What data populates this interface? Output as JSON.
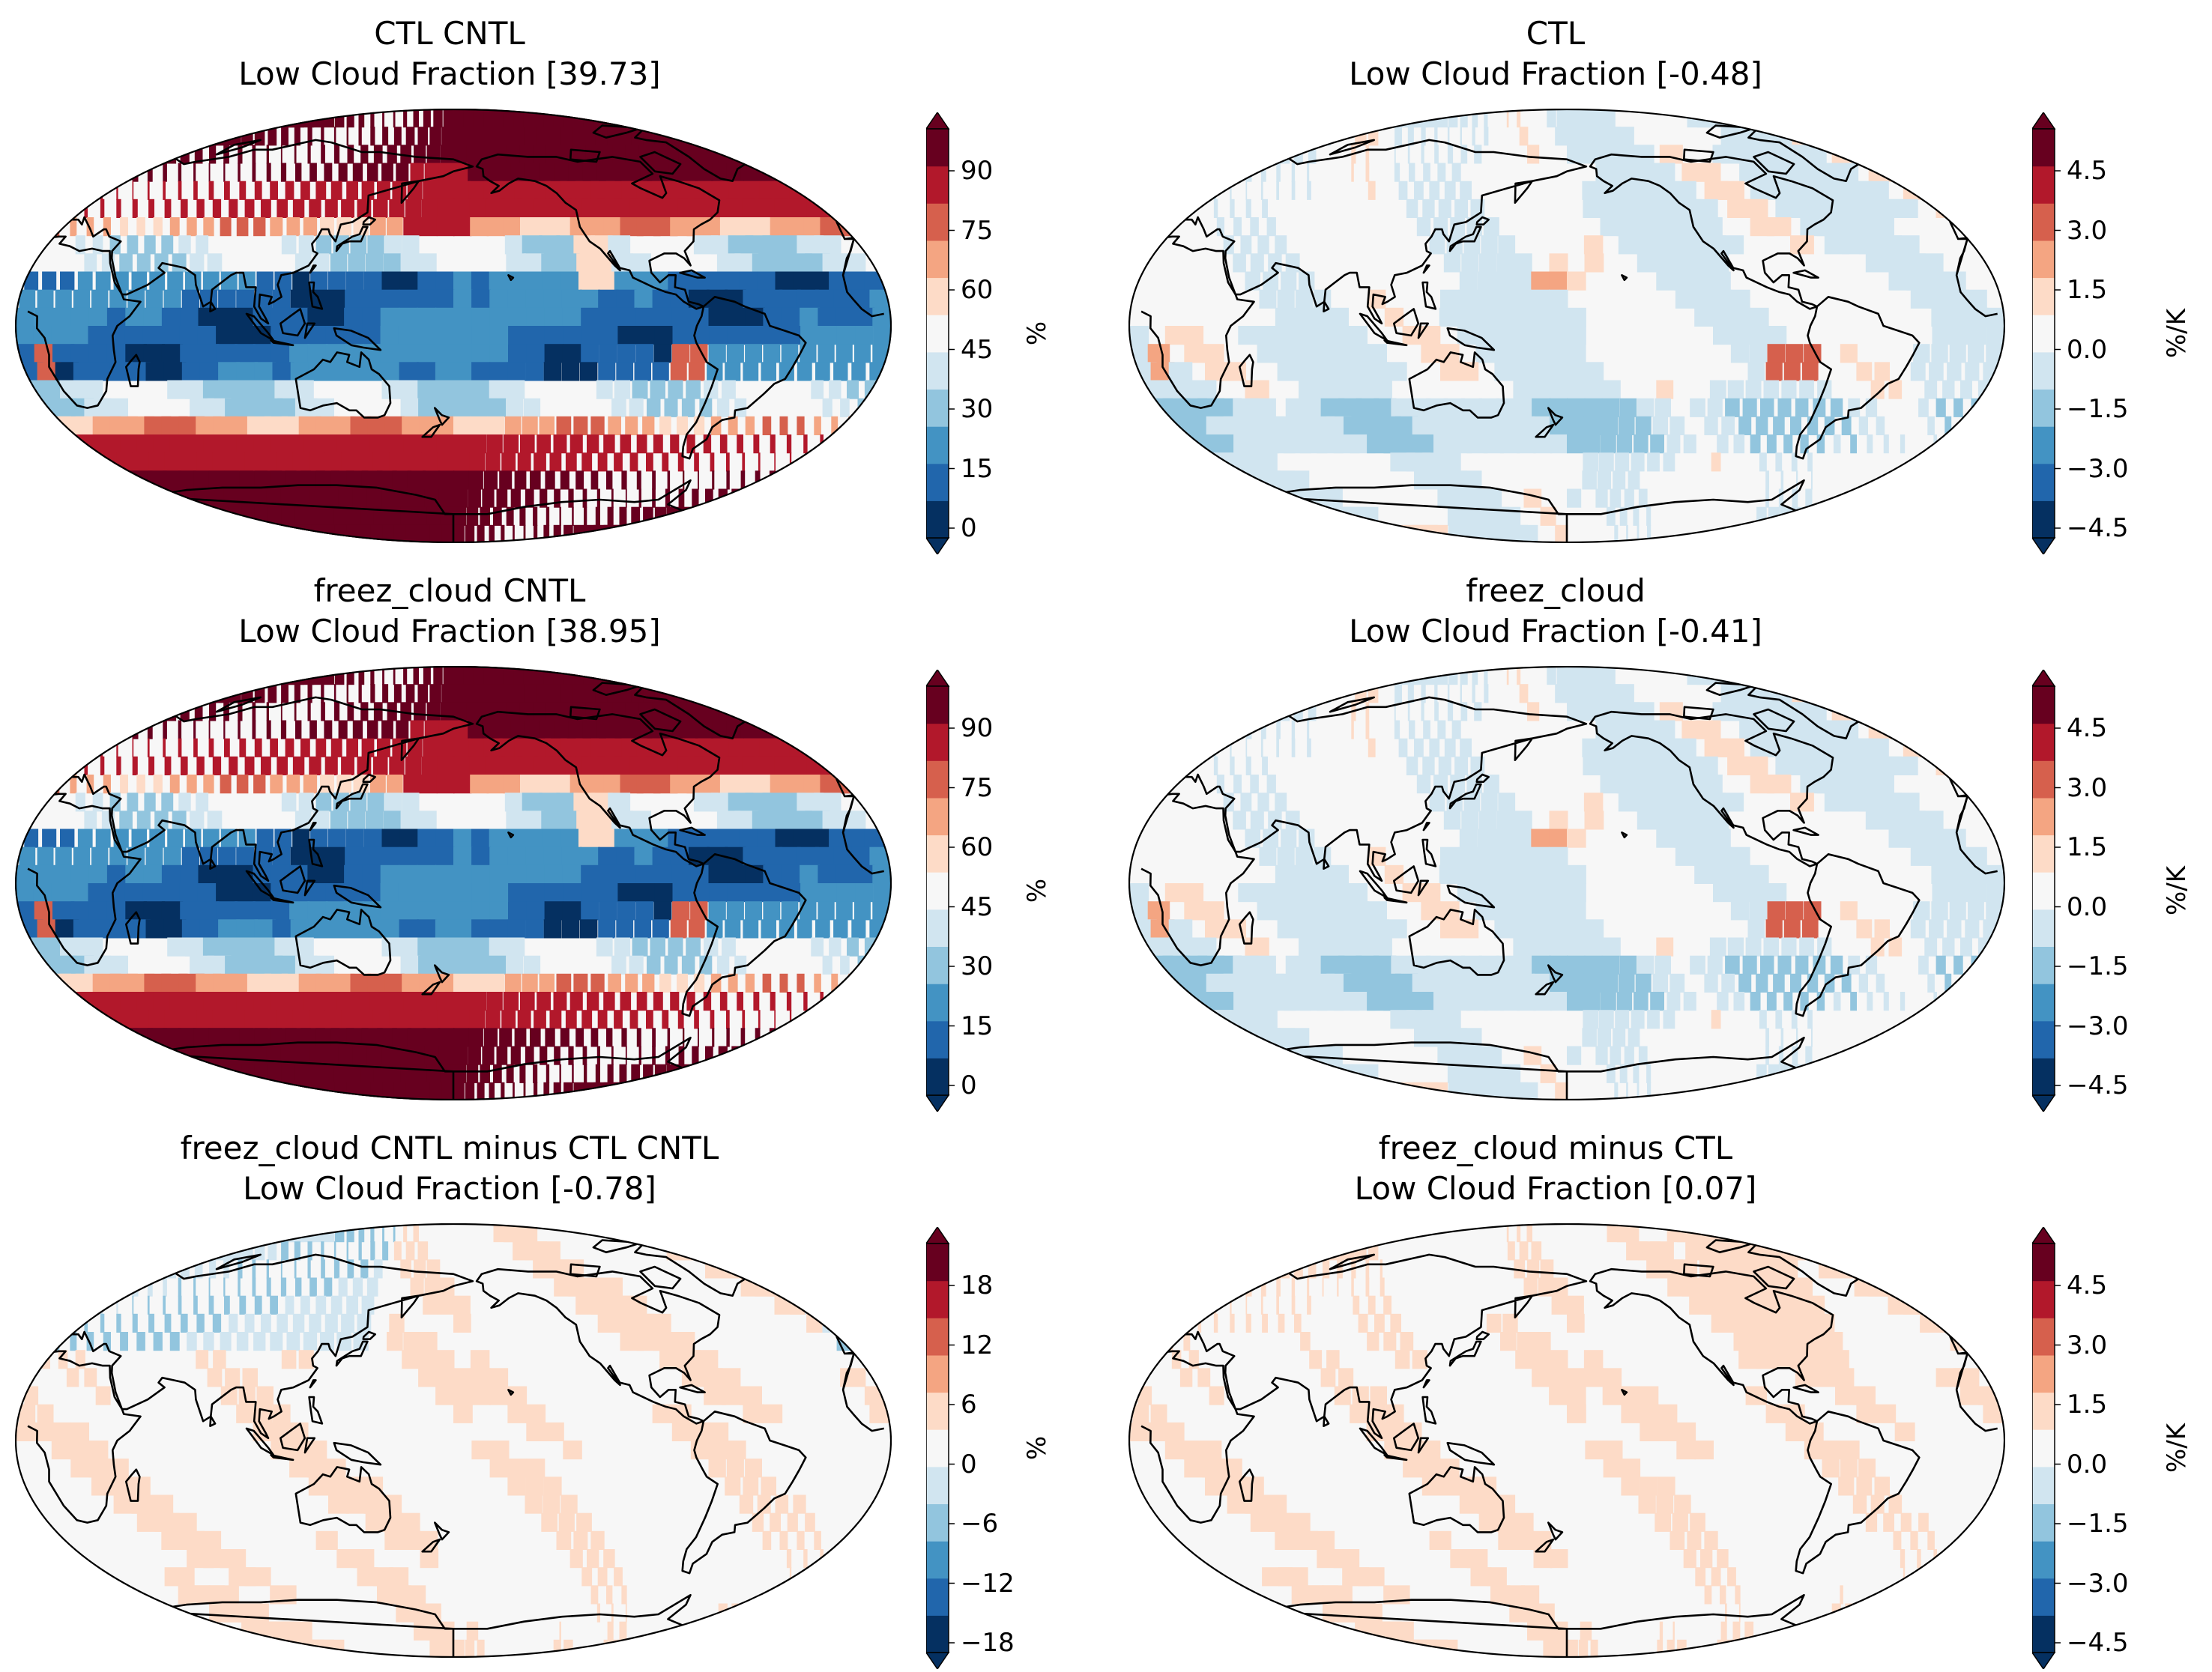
{
  "colors": {
    "rdbu": [
      "#053061",
      "#2166ac",
      "#4393c3",
      "#92c5de",
      "#d1e5f0",
      "#f7f7f7",
      "#fddbc7",
      "#f4a582",
      "#d6604d",
      "#b2182b",
      "#67001f"
    ],
    "coastline": "#000000"
  },
  "panels": [
    {
      "title_line1": "CTL CNTL",
      "title_line2": "Low Cloud Fraction [39.73]",
      "units": "%",
      "ticks": [
        "0",
        "15",
        "30",
        "45",
        "60",
        "75",
        "90"
      ],
      "pattern": "climatology"
    },
    {
      "title_line1": "CTL",
      "title_line2": "Low Cloud Fraction [-0.48]",
      "units": "%/K",
      "ticks": [
        "−4.5",
        "−3.0",
        "−1.5",
        "0.0",
        "1.5",
        "3.0",
        "4.5"
      ],
      "pattern": "response"
    },
    {
      "title_line1": "freez_cloud CNTL",
      "title_line2": "Low Cloud Fraction [38.95]",
      "units": "%",
      "ticks": [
        "0",
        "15",
        "30",
        "45",
        "60",
        "75",
        "90"
      ],
      "pattern": "climatology"
    },
    {
      "title_line1": "freez_cloud",
      "title_line2": "Low Cloud Fraction [-0.41]",
      "units": "%/K",
      "ticks": [
        "−4.5",
        "−3.0",
        "−1.5",
        "0.0",
        "1.5",
        "3.0",
        "4.5"
      ],
      "pattern": "response"
    },
    {
      "title_line1": "freez_cloud CNTL minus CTL CNTL",
      "title_line2": "Low Cloud Fraction [-0.78]",
      "units": "%",
      "ticks": [
        "−18",
        "−12",
        "−6",
        "0",
        "6",
        "12",
        "18"
      ],
      "pattern": "difference"
    },
    {
      "title_line1": "freez_cloud minus CTL",
      "title_line2": "Low Cloud Fraction [0.07]",
      "units": "%/K",
      "ticks": [
        "−4.5",
        "−3.0",
        "−1.5",
        "0.0",
        "1.5",
        "3.0",
        "4.5"
      ],
      "pattern": "difference2"
    }
  ]
}
